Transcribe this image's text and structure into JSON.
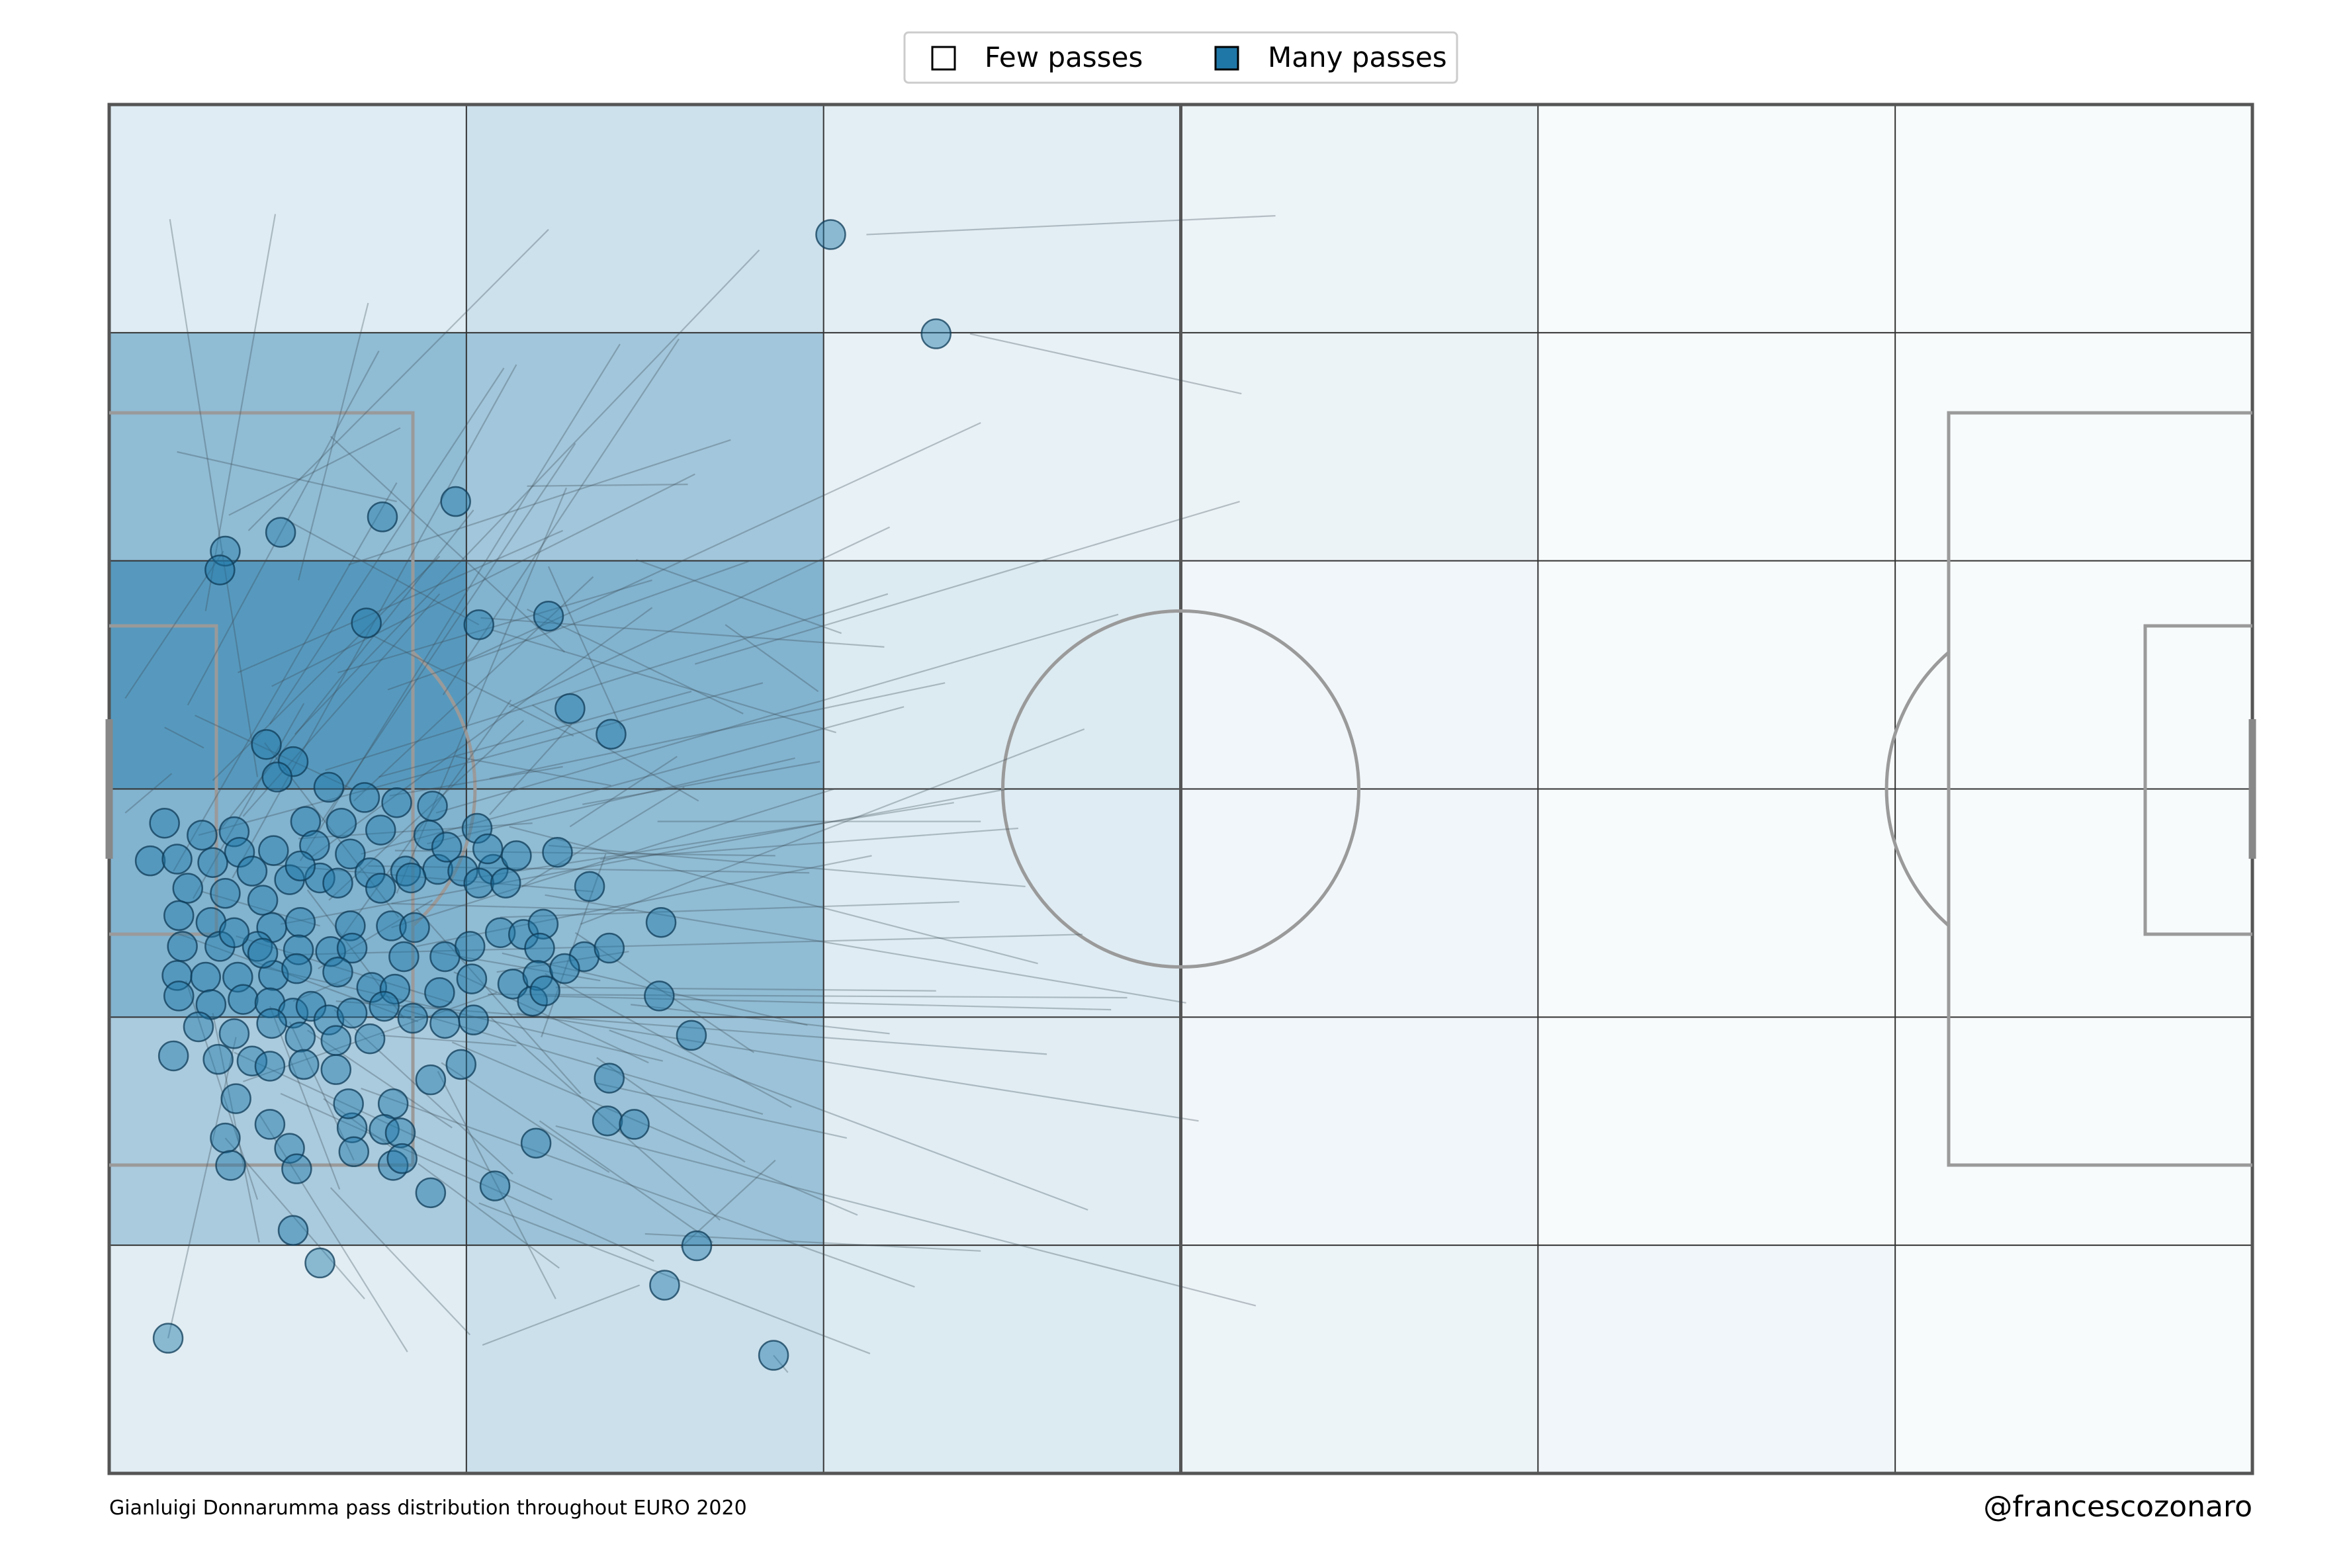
{
  "chart_data": {
    "type": "heatmap",
    "pitch": {
      "length": 120,
      "width": 80,
      "grid_cols": 6,
      "grid_rows": 6
    },
    "legend": {
      "entries": [
        {
          "label": "Few passes",
          "color": "#ffffff"
        },
        {
          "label": "Many passes",
          "color": "#1f77a8"
        }
      ],
      "placement": "top-center"
    },
    "caption": "Gianluigi Donnarumma pass distribution throughout EURO 2020",
    "credit": "@francescozonaro",
    "colors": {
      "accent": "#1f77a8",
      "pitch_lines": "#9a9a9a",
      "grid": "#333333"
    },
    "heat": [
      [
        0.14,
        0.24,
        0.12,
        0.06,
        0.0,
        0.0
      ],
      [
        0.58,
        0.48,
        0.09,
        0.07,
        0.0,
        0.0
      ],
      [
        0.9,
        0.66,
        0.16,
        0.04,
        0.0,
        0.0
      ],
      [
        0.66,
        0.58,
        0.14,
        0.04,
        0.0,
        0.0
      ],
      [
        0.44,
        0.52,
        0.13,
        0.04,
        0.0,
        0.0
      ],
      [
        0.13,
        0.25,
        0.16,
        0.06,
        0.04,
        0.0
      ]
    ],
    "passes": [
      [
        3.4,
        73.3,
        8.3,
        40.7
      ],
      [
        42.4,
        72.4,
        65.3,
        73.5
      ],
      [
        48.2,
        66.6,
        63.4,
        63.1
      ],
      [
        16.1,
        56.8,
        3.8,
        59.7
      ],
      [
        23.4,
        57.7,
        32.4,
        57.8
      ],
      [
        6.7,
        56.0,
        16.3,
        61.1
      ],
      [
        9.8,
        55.8,
        20.7,
        49.6
      ],
      [
        6.4,
        53.9,
        0.9,
        45.3
      ],
      [
        24.6,
        53.0,
        28.7,
        43.5
      ],
      [
        20.8,
        50.0,
        43.4,
        48.3
      ],
      [
        14.7,
        49.0,
        26.0,
        43.1
      ],
      [
        34.5,
        49.6,
        39.7,
        45.7
      ],
      [
        25.9,
        43.8,
        21.3,
        38.5
      ],
      [
        3.1,
        43.6,
        5.3,
        42.4
      ],
      [
        8.7,
        42.7,
        16.2,
        32.5
      ],
      [
        3.5,
        40.9,
        0.9,
        38.6
      ],
      [
        15.1,
        40.7,
        32.6,
        45.7
      ],
      [
        32.2,
        40.1,
        23.1,
        34.3
      ],
      [
        22.4,
        37.8,
        52.0,
        29.8
      ],
      [
        27.8,
        36.2,
        24.2,
        25.5
      ],
      [
        19.4,
        41.9,
        28.1,
        40.2
      ],
      [
        13.6,
        40.0,
        4.8,
        44.3
      ],
      [
        10.6,
        37.1,
        23.7,
        38.0
      ],
      [
        8.8,
        35.6,
        27.1,
        34.0
      ],
      [
        11.1,
        34.1,
        16.5,
        26.6
      ],
      [
        5.2,
        34.0,
        11.8,
        32.0
      ],
      [
        3.7,
        31.6,
        17.3,
        26.4
      ],
      [
        7.1,
        31.4,
        19.2,
        27.5
      ],
      [
        15.8,
        33.3,
        29.4,
        32.9
      ],
      [
        17.2,
        33.0,
        26.4,
        22.2
      ],
      [
        24.4,
        29.2,
        38.2,
        21.4
      ],
      [
        18.0,
        30.5,
        27.5,
        28.8
      ],
      [
        4.3,
        28.8,
        8.3,
        16.0
      ],
      [
        9.0,
        27.3,
        12.9,
        16.6
      ],
      [
        12.6,
        27.1,
        22.6,
        17.5
      ],
      [
        11.1,
        25.9,
        19.2,
        20.2
      ],
      [
        27.3,
        22.8,
        41.3,
        19.6
      ],
      [
        27.3,
        24.3,
        35.6,
        18.2
      ],
      [
        24.1,
        20.6,
        33.8,
        13.5
      ],
      [
        32.0,
        13.2,
        37.3,
        18.3
      ],
      [
        29.7,
        11.0,
        20.9,
        7.5
      ],
      [
        37.2,
        6.9,
        38.0,
        5.9
      ],
      [
        3.3,
        7.9,
        7.1,
        25.5
      ],
      [
        12.0,
        21.9,
        16.7,
        18.4
      ],
      [
        7.5,
        22.9,
        21.7,
        28.1
      ],
      [
        15.2,
        25.6,
        22.8,
        25.0
      ],
      [
        18.6,
        24.0,
        28.0,
        17.6
      ],
      [
        21.9,
        32.5,
        47.6,
        33.4
      ],
      [
        16.0,
        36.4,
        37.3,
        36.1
      ],
      [
        7.2,
        46.8,
        25.4,
        55.1
      ],
      [
        12.8,
        46.8,
        30.4,
        52.2
      ],
      [
        5.4,
        50.4,
        9.3,
        73.6
      ],
      [
        18.7,
        45.5,
        31.9,
        66.3
      ],
      [
        22.4,
        44.8,
        43.7,
        55.3
      ],
      [
        10.6,
        52.2,
        14.5,
        68.4
      ],
      [
        21.3,
        40.6,
        46.8,
        46.2
      ],
      [
        9.0,
        43.8,
        22.1,
        64.6
      ],
      [
        13.7,
        39.3,
        27.1,
        52.4
      ],
      [
        26.5,
        39.1,
        39.8,
        41.6
      ],
      [
        18.3,
        38.6,
        56.5,
        50.2
      ],
      [
        7.5,
        38.4,
        18.5,
        51.4
      ],
      [
        5.0,
        37.3,
        36.6,
        46.2
      ],
      [
        11.3,
        36.0,
        30.4,
        50.6
      ],
      [
        3.6,
        35.2,
        16.1,
        57.9
      ],
      [
        14.5,
        35.5,
        39.2,
        35.1
      ],
      [
        17.2,
        30.8,
        42.7,
        36.1
      ],
      [
        9.9,
        30.3,
        54.5,
        31.5
      ],
      [
        25.0,
        28.4,
        46.3,
        28.2
      ],
      [
        21.2,
        28.0,
        57.0,
        27.8
      ],
      [
        12.7,
        27.6,
        52.5,
        24.5
      ],
      [
        22.8,
        26.9,
        61.0,
        20.6
      ],
      [
        28.0,
        25.9,
        54.8,
        15.4
      ],
      [
        19.2,
        25.2,
        41.9,
        15.1
      ],
      [
        7.0,
        24.6,
        24.8,
        16.0
      ],
      [
        9.6,
        22.2,
        30.5,
        12.4
      ],
      [
        14.1,
        22.5,
        45.1,
        10.9
      ],
      [
        25.0,
        20.3,
        64.2,
        9.8
      ],
      [
        17.3,
        18.1,
        25.2,
        12.0
      ],
      [
        12.4,
        16.7,
        20.2,
        8.1
      ],
      [
        20.7,
        15.8,
        42.6,
        7.0
      ],
      [
        30.0,
        14.0,
        48.8,
        13.0
      ],
      [
        6.5,
        19.6,
        14.3,
        10.2
      ],
      [
        8.4,
        21.0,
        16.7,
        7.1
      ],
      [
        26.4,
        32.1,
        54.6,
        43.5
      ],
      [
        12.1,
        41.1,
        43.6,
        51.4
      ],
      [
        24.6,
        36.7,
        51.3,
        34.3
      ],
      [
        10.4,
        43.2,
        36.4,
        71.5
      ],
      [
        15.6,
        45.8,
        35.8,
        53.3
      ],
      [
        20.0,
        47.5,
        48.8,
        61.4
      ],
      [
        23.4,
        50.5,
        35.5,
        44.4
      ],
      [
        29.5,
        53.4,
        41.0,
        49.1
      ],
      [
        32.8,
        47.3,
        63.3,
        56.8
      ],
      [
        13.4,
        53.1,
        34.8,
        60.4
      ],
      [
        7.8,
        55.1,
        24.6,
        72.7
      ],
      [
        25.5,
        48.0,
        12.4,
        60.6
      ],
      [
        33.0,
        39.3,
        23.7,
        44.9
      ],
      [
        40.7,
        43.3,
        21.4,
        49.3
      ],
      [
        5.8,
        40.5,
        18.5,
        53.6
      ],
      [
        9.1,
        46.0,
        32.8,
        58.4
      ],
      [
        4.4,
        44.9,
        15.1,
        65.6
      ],
      [
        11.9,
        38.1,
        26.1,
        60.2
      ],
      [
        6.2,
        37.6,
        20.4,
        56.3
      ],
      [
        14.1,
        36.2,
        44.5,
        44.8
      ],
      [
        15.7,
        39.6,
        25.4,
        41.3
      ],
      [
        17.8,
        36.8,
        38.4,
        41.8
      ],
      [
        9.6,
        32.1,
        50.3,
        40.0
      ],
      [
        4.7,
        33.6,
        10.9,
        45.0
      ],
      [
        8.1,
        29.7,
        31.0,
        24.1
      ],
      [
        16.5,
        27.1,
        36.6,
        21.0
      ],
      [
        22.0,
        30.4,
        39.1,
        26.2
      ],
      [
        20.4,
        34.8,
        47.3,
        39.2
      ],
      [
        24.4,
        33.8,
        60.3,
        27.5
      ],
      [
        21.4,
        26.6,
        34.2,
        14.8
      ],
      [
        18.4,
        23.5,
        25.0,
        10.2
      ],
      [
        10.1,
        26.4,
        13.7,
        18.3
      ],
      [
        5.8,
        26.9,
        8.4,
        13.5
      ],
      [
        29.2,
        27.4,
        43.7,
        25.7
      ],
      [
        15.8,
        31.9,
        40.6,
        40.0
      ],
      [
        12.3,
        33.5,
        23.2,
        44.0
      ],
      [
        27.5,
        35.9,
        50.9,
        37.7
      ],
      [
        30.7,
        38.1,
        48.8,
        38.1
      ],
      [
        10.7,
        35.8,
        28.6,
        66.0
      ],
      [
        6.9,
        34.8,
        22.8,
        64.8
      ],
      [
        16.1,
        33.9,
        25.6,
        57.6
      ],
      [
        13.0,
        31.3,
        22.5,
        45.2
      ],
      [
        19.3,
        29.3,
        30.2,
        24.0
      ],
      [
        24.3,
        27.9,
        56.1,
        27.1
      ],
      [
        26.1,
        31.6,
        36.1,
        24.6
      ],
      [
        11.7,
        29.5,
        18.1,
        33.5
      ],
      [
        21.7,
        29.3,
        29.1,
        30.5
      ],
      [
        13.5,
        29.0,
        10.3,
        27.6
      ],
      [
        25.8,
        37.8,
        31.8,
        41.9
      ]
    ],
    "start_points": [
      [
        40.4,
        72.4
      ],
      [
        46.3,
        66.6
      ],
      [
        19.4,
        56.8
      ],
      [
        15.3,
        55.9
      ],
      [
        9.6,
        55.0
      ],
      [
        6.5,
        53.9
      ],
      [
        6.2,
        52.8
      ],
      [
        20.7,
        49.6
      ],
      [
        14.4,
        49.7
      ],
      [
        24.6,
        50.1
      ],
      [
        25.8,
        44.7
      ],
      [
        28.1,
        43.2
      ],
      [
        8.8,
        42.6
      ],
      [
        10.3,
        41.6
      ],
      [
        9.4,
        40.7
      ],
      [
        12.3,
        40.1
      ],
      [
        14.3,
        39.5
      ],
      [
        16.1,
        39.2
      ],
      [
        18.1,
        39.0
      ],
      [
        11.0,
        38.1
      ],
      [
        13.0,
        38.0
      ],
      [
        15.2,
        37.6
      ],
      [
        17.9,
        37.3
      ],
      [
        20.6,
        37.7
      ],
      [
        3.1,
        38.0
      ],
      [
        5.2,
        37.3
      ],
      [
        7.0,
        37.5
      ],
      [
        7.3,
        36.3
      ],
      [
        9.2,
        36.4
      ],
      [
        11.5,
        36.7
      ],
      [
        13.5,
        36.2
      ],
      [
        14.6,
        35.1
      ],
      [
        16.6,
        35.2
      ],
      [
        18.4,
        35.3
      ],
      [
        19.8,
        35.2
      ],
      [
        21.5,
        35.3
      ],
      [
        22.8,
        36.1
      ],
      [
        2.3,
        35.8
      ],
      [
        3.8,
        35.9
      ],
      [
        5.8,
        35.7
      ],
      [
        8.0,
        35.2
      ],
      [
        10.1,
        34.7
      ],
      [
        11.8,
        34.8
      ],
      [
        12.8,
        34.5
      ],
      [
        15.2,
        34.2
      ],
      [
        16.9,
        34.8
      ],
      [
        20.7,
        34.5
      ],
      [
        22.2,
        34.5
      ],
      [
        26.9,
        34.3
      ],
      [
        18.9,
        36.6
      ],
      [
        21.2,
        36.5
      ],
      [
        25.1,
        36.3
      ],
      [
        4.4,
        34.2
      ],
      [
        6.5,
        33.9
      ],
      [
        8.6,
        33.5
      ],
      [
        3.9,
        32.6
      ],
      [
        5.7,
        32.2
      ],
      [
        9.1,
        31.9
      ],
      [
        10.7,
        32.2
      ],
      [
        13.5,
        32.0
      ],
      [
        15.8,
        32.0
      ],
      [
        17.1,
        31.9
      ],
      [
        21.9,
        31.6
      ],
      [
        23.2,
        31.5
      ],
      [
        30.9,
        32.2
      ],
      [
        24.3,
        32.1
      ],
      [
        4.1,
        30.8
      ],
      [
        6.2,
        30.8
      ],
      [
        8.3,
        30.8
      ],
      [
        10.6,
        30.6
      ],
      [
        12.4,
        30.5
      ],
      [
        13.6,
        30.7
      ],
      [
        16.5,
        30.2
      ],
      [
        18.8,
        30.2
      ],
      [
        20.2,
        30.8
      ],
      [
        24.1,
        30.7
      ],
      [
        26.6,
        30.2
      ],
      [
        28.0,
        30.7
      ],
      [
        3.8,
        29.1
      ],
      [
        5.4,
        29.0
      ],
      [
        7.2,
        29.0
      ],
      [
        9.2,
        29.1
      ],
      [
        10.5,
        29.5
      ],
      [
        12.8,
        29.3
      ],
      [
        14.7,
        28.4
      ],
      [
        16.0,
        28.3
      ],
      [
        18.5,
        28.1
      ],
      [
        20.3,
        28.9
      ],
      [
        22.6,
        28.6
      ],
      [
        24.0,
        29.1
      ],
      [
        3.9,
        27.9
      ],
      [
        5.7,
        27.4
      ],
      [
        7.5,
        27.7
      ],
      [
        9.0,
        27.5
      ],
      [
        10.3,
        26.9
      ],
      [
        11.3,
        27.3
      ],
      [
        12.3,
        26.5
      ],
      [
        13.6,
        26.9
      ],
      [
        15.4,
        27.3
      ],
      [
        17.0,
        26.6
      ],
      [
        18.8,
        26.3
      ],
      [
        20.4,
        26.5
      ],
      [
        5.0,
        26.1
      ],
      [
        7.0,
        25.7
      ],
      [
        9.1,
        26.3
      ],
      [
        10.7,
        25.5
      ],
      [
        12.7,
        25.3
      ],
      [
        14.6,
        25.4
      ],
      [
        3.6,
        24.4
      ],
      [
        6.1,
        24.2
      ],
      [
        8.0,
        24.1
      ],
      [
        10.9,
        23.9
      ],
      [
        12.7,
        23.6
      ],
      [
        19.7,
        23.9
      ],
      [
        9.0,
        23.8
      ],
      [
        18.0,
        23.0
      ],
      [
        15.9,
        21.6
      ],
      [
        9.0,
        20.4
      ],
      [
        13.6,
        20.2
      ],
      [
        13.4,
        21.6
      ],
      [
        7.1,
        21.9
      ],
      [
        15.4,
        20.1
      ],
      [
        16.3,
        19.9
      ],
      [
        6.5,
        19.6
      ],
      [
        10.1,
        19.0
      ],
      [
        13.7,
        18.8
      ],
      [
        15.9,
        18.0
      ],
      [
        23.9,
        19.3
      ],
      [
        27.9,
        20.6
      ],
      [
        6.8,
        18.0
      ],
      [
        10.5,
        17.8
      ],
      [
        16.4,
        18.4
      ],
      [
        18.0,
        16.4
      ],
      [
        21.6,
        16.8
      ],
      [
        10.3,
        14.2
      ],
      [
        11.8,
        12.3
      ],
      [
        29.4,
        20.4
      ],
      [
        32.9,
        13.3
      ],
      [
        31.1,
        11.0
      ],
      [
        3.3,
        7.9
      ],
      [
        37.2,
        6.9
      ],
      [
        28.0,
        23.1
      ],
      [
        25.5,
        29.5
      ],
      [
        23.7,
        27.6
      ],
      [
        32.6,
        25.6
      ],
      [
        30.8,
        27.9
      ],
      [
        24.4,
        28.2
      ],
      [
        7.0,
        31.6
      ],
      [
        10.7,
        35.5
      ],
      [
        8.6,
        30.4
      ]
    ]
  }
}
